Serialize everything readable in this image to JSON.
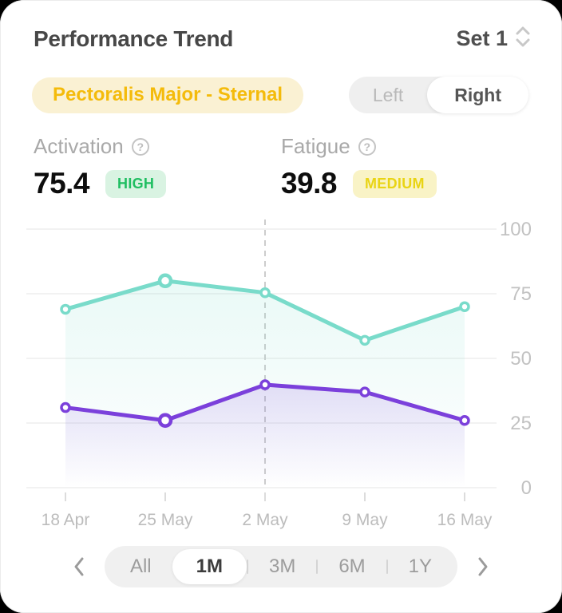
{
  "header": {
    "title": "Performance Trend",
    "set_selector": "Set 1"
  },
  "muscle_badge": "Pectoralis Major - Sternal",
  "side_toggle": {
    "left": "Left",
    "right": "Right",
    "selected": "Right"
  },
  "stats": {
    "0": {
      "label": "Activation",
      "value": "75.4",
      "level": "HIGH"
    },
    "1": {
      "label": "Fatigue",
      "value": "39.8",
      "level": "MEDIUM"
    }
  },
  "chart_data": {
    "type": "line",
    "categories": [
      "18 Apr",
      "25 May",
      "2 May",
      "9 May",
      "16 May"
    ],
    "series": [
      {
        "name": "activation",
        "color": "#79DBCA",
        "values": [
          69,
          80,
          75.4,
          57,
          70
        ]
      },
      {
        "name": "fatigue",
        "color": "#7B40DB",
        "values": [
          31,
          26,
          39.8,
          37,
          26
        ]
      }
    ],
    "ylim": [
      0,
      100
    ],
    "yticks": [
      100,
      75,
      50,
      25,
      0
    ],
    "y_axis_position": "right",
    "grid": "horizontal",
    "selected_category_index": 2,
    "emphasized_point_index": 1,
    "legend": "none"
  },
  "range_selector": {
    "options": [
      "All",
      "1M",
      "3M",
      "6M",
      "1Y"
    ],
    "selected": "1M"
  },
  "colors": {
    "activation_line": "#79DBCA",
    "fatigue_line": "#7B40DB",
    "high_badge_text": "#1FBE61",
    "high_badge_bg": "#D9F3E2",
    "medium_badge_text": "#E9D414",
    "medium_badge_bg": "#F9F3C6",
    "muscle_badge_text": "#F4BB0B",
    "muscle_badge_bg": "#FAF1D3",
    "gridline": "#f2f2f2",
    "axis_label": "#c2c2c2",
    "dashed_marker_line": "#cdcdcd"
  }
}
